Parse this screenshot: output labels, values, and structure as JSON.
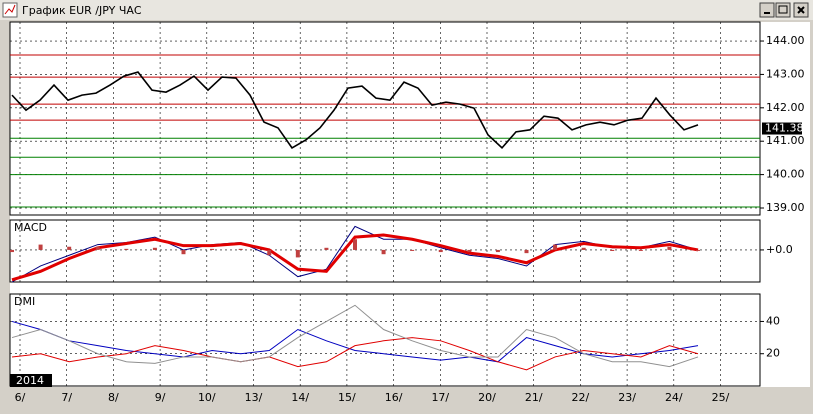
{
  "window": {
    "title": "График EUR /JPY ЧАС"
  },
  "chart_data": [
    {
      "type": "line",
      "name": "price",
      "values": [
        142.38,
        141.93,
        142.23,
        142.68,
        142.23,
        142.38,
        142.44,
        142.68,
        142.95,
        143.07,
        142.53,
        142.47,
        142.68,
        142.95,
        142.53,
        142.92,
        142.89,
        142.38,
        141.57,
        141.4,
        140.8,
        141.04,
        141.4,
        141.93,
        142.59,
        142.65,
        142.29,
        142.23,
        142.77,
        142.59,
        142.08,
        142.17,
        142.11,
        141.99,
        141.19,
        140.8,
        141.28,
        141.34,
        141.75,
        141.69,
        141.34,
        141.49,
        141.57,
        141.49,
        141.63,
        141.69,
        142.29,
        141.78,
        141.34,
        141.49
      ],
      "color": "#000000",
      "ylim": [
        138.79,
        144.57
      ],
      "yticks": [
        {
          "value": 144,
          "label": "144.00"
        },
        {
          "value": 143,
          "label": "143.00"
        },
        {
          "value": 142,
          "label": "142.00"
        },
        {
          "value": 141,
          "label": "141.00"
        },
        {
          "value": 140,
          "label": "140.00"
        },
        {
          "value": 139,
          "label": "139.00"
        }
      ],
      "levels": [
        {
          "value": 143.58,
          "color": "#c00000"
        },
        {
          "value": 142.92,
          "color": "#c00000"
        },
        {
          "value": 142.11,
          "color": "#c00000"
        },
        {
          "value": 141.63,
          "color": "#c00000"
        },
        {
          "value": 141.09,
          "color": "#008000"
        },
        {
          "value": 140.52,
          "color": "#008000"
        },
        {
          "value": 140.0,
          "color": "#008000"
        },
        {
          "value": 139.03,
          "color": "#008000"
        }
      ],
      "last_price": 141.38
    },
    {
      "type": "macd",
      "title": "MACD",
      "series": [
        {
          "name": "macd",
          "color": "#000080",
          "values": [
            -0.3,
            -0.15,
            -0.05,
            0.05,
            0.07,
            0.12,
            0,
            0.05,
            0.07,
            -0.05,
            -0.25,
            -0.18,
            0.22,
            0.1,
            0.1,
            0.02,
            -0.05,
            -0.08,
            -0.15,
            0.05,
            0.08,
            0.02,
            0.02,
            0.08,
            0
          ]
        },
        {
          "name": "signal",
          "color": "#e00000",
          "values": [
            -0.28,
            -0.2,
            -0.08,
            0.02,
            0.06,
            0.1,
            0.04,
            0.04,
            0.06,
            0,
            -0.18,
            -0.2,
            0.12,
            0.14,
            0.1,
            0.04,
            -0.03,
            -0.06,
            -0.12,
            0,
            0.06,
            0.03,
            0.02,
            0.05,
            0
          ]
        },
        {
          "name": "histogram",
          "color": "#c04040",
          "values": [
            -0.02,
            0.05,
            0.03,
            0.03,
            0.01,
            0.02,
            -0.04,
            0.01,
            0.01,
            -0.05,
            -0.07,
            0.02,
            0.1,
            -0.04,
            0,
            -0.02,
            -0.02,
            -0.02,
            -0.03,
            0.05,
            0.02,
            -0.01,
            0,
            0.03,
            0
          ]
        }
      ],
      "ylim": [
        -0.3,
        0.28
      ],
      "yticks": [
        {
          "value": 0,
          "label": "+0.0"
        }
      ]
    },
    {
      "type": "dmi",
      "title": "DMI",
      "series": [
        {
          "name": "+DI",
          "color": "#0000c0",
          "values": [
            40,
            35,
            28,
            25,
            22,
            20,
            18,
            22,
            20,
            22,
            35,
            28,
            22,
            20,
            18,
            16,
            18,
            15,
            30,
            25,
            20,
            18,
            20,
            22,
            25
          ]
        },
        {
          "name": "-DI",
          "color": "#e00000",
          "values": [
            18,
            20,
            15,
            18,
            20,
            25,
            22,
            18,
            15,
            18,
            12,
            15,
            25,
            28,
            30,
            28,
            22,
            15,
            10,
            18,
            22,
            20,
            18,
            25,
            20
          ]
        },
        {
          "name": "ADX",
          "color": "#909090",
          "values": [
            30,
            35,
            28,
            20,
            15,
            14,
            18,
            18,
            15,
            18,
            30,
            40,
            50,
            35,
            28,
            22,
            18,
            18,
            35,
            30,
            20,
            15,
            15,
            12,
            18
          ]
        }
      ],
      "ylim": [
        0,
        57
      ],
      "yticks": [
        40,
        20
      ],
      "year": "2014",
      "x_labels": [
        "6/",
        "7/",
        "8/",
        "9/",
        "10/",
        "13/",
        "14/",
        "15/",
        "16/",
        "17/",
        "20/",
        "21/",
        "22/",
        "23/",
        "24/",
        "25/"
      ]
    }
  ]
}
